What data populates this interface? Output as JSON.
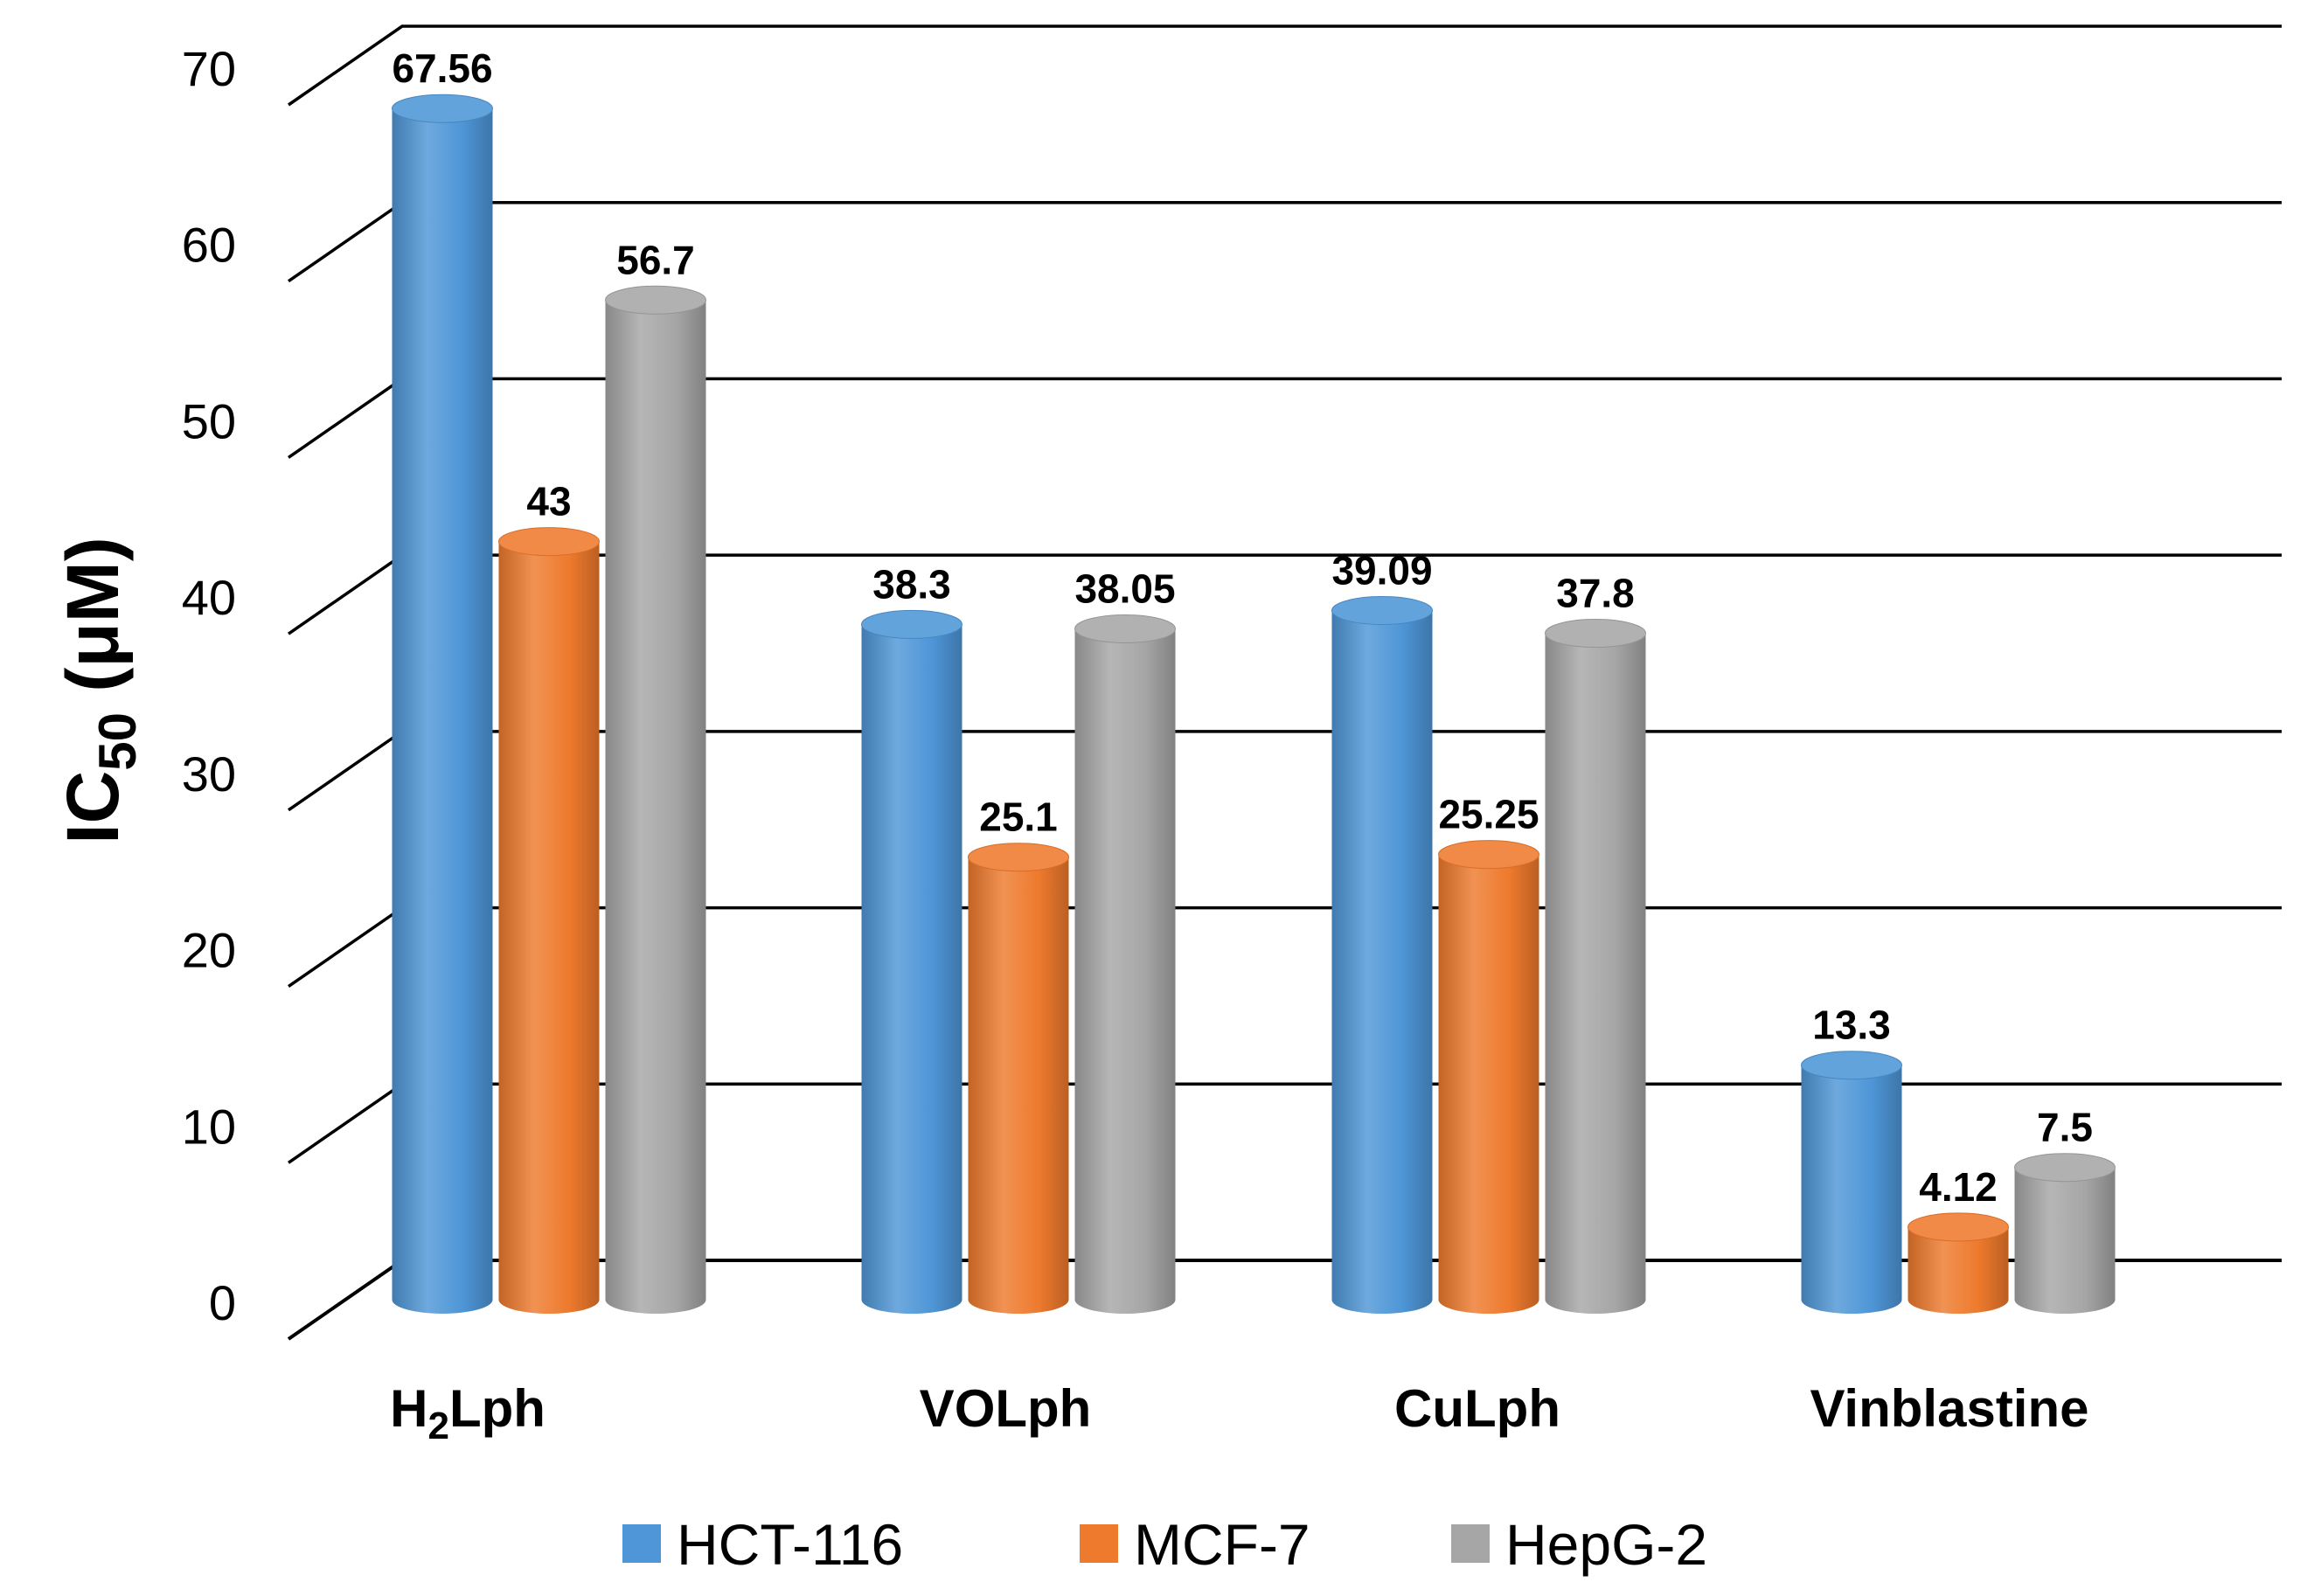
{
  "chart_data": {
    "type": "bar",
    "title": "",
    "xlabel": "",
    "ylabel": "IC50 (μM)",
    "ylabel_parts": {
      "main": "IC",
      "sub": "50",
      "unit": " (μM)"
    },
    "ylim": [
      0,
      70
    ],
    "yticks": [
      0,
      10,
      20,
      30,
      40,
      50,
      60,
      70
    ],
    "grid": true,
    "legend_position": "bottom",
    "categories": [
      {
        "main": "H",
        "sub": "2",
        "rest": "Lph"
      },
      {
        "main": "VOLph",
        "sub": "",
        "rest": ""
      },
      {
        "main": "CuLph",
        "sub": "",
        "rest": ""
      },
      {
        "main": "Vinblastine",
        "sub": "",
        "rest": ""
      }
    ],
    "series": [
      {
        "name": "HCT-116",
        "color": "#4e96d7",
        "values": [
          67.56,
          38.3,
          39.09,
          13.3
        ],
        "labels": [
          "67.56",
          "38.3",
          "39.09",
          "13.3"
        ]
      },
      {
        "name": "MCF-7",
        "color": "#ee7a2d",
        "values": [
          43,
          25.1,
          25.25,
          4.12
        ],
        "labels": [
          "43",
          "25.1",
          "25.25",
          "4.12"
        ]
      },
      {
        "name": "HepG-2",
        "color": "#a6a6a6",
        "values": [
          56.7,
          38.05,
          37.8,
          7.5
        ],
        "labels": [
          "56.7",
          "38.05",
          "37.8",
          "7.5"
        ]
      }
    ]
  }
}
